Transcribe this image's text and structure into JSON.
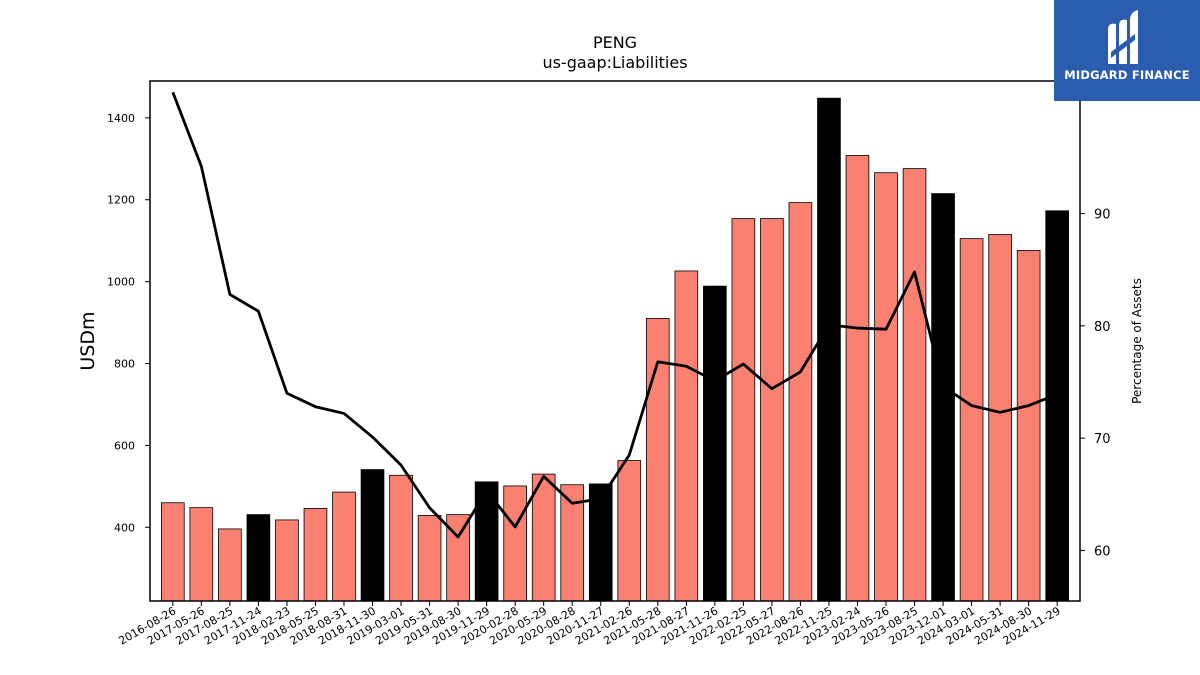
{
  "chart_data": {
    "type": "bar",
    "title": "PENG",
    "subtitle": "us-gaap:Liabilities",
    "ylabel": "USDm",
    "y2label": "Percentage of Assets",
    "ylim": [
      220,
      1490
    ],
    "y2lim": [
      55.5,
      101.8
    ],
    "yticks": [
      400,
      600,
      800,
      1000,
      1200,
      1400
    ],
    "y2ticks": [
      60,
      70,
      80,
      90
    ],
    "categories": [
      "2016-08-26",
      "2017-05-26",
      "2017-08-25",
      "2017-11-24",
      "2018-02-23",
      "2018-05-25",
      "2018-08-31",
      "2018-11-30",
      "2019-03-01",
      "2019-05-31",
      "2019-08-30",
      "2019-11-29",
      "2020-02-28",
      "2020-05-29",
      "2020-08-28",
      "2020-11-27",
      "2021-02-26",
      "2021-05-28",
      "2021-08-27",
      "2021-11-26",
      "2022-02-25",
      "2022-05-27",
      "2022-08-26",
      "2022-11-25",
      "2023-02-24",
      "2023-05-26",
      "2023-08-25",
      "2023-12-01",
      "2024-03-01",
      "2024-05-31",
      "2024-08-30",
      "2024-11-29"
    ],
    "series": [
      {
        "kind": "bar",
        "values": [
          460,
          448,
          396,
          431,
          418,
          446,
          486,
          541,
          527,
          429,
          431,
          511,
          501,
          530,
          504,
          506,
          563,
          910,
          1026,
          989,
          1154,
          1154,
          1193,
          1448,
          1308,
          1266,
          1276,
          1215,
          1105,
          1115,
          1076,
          1173
        ],
        "highlight": [
          false,
          false,
          false,
          true,
          false,
          false,
          false,
          true,
          false,
          false,
          false,
          true,
          false,
          false,
          false,
          true,
          false,
          false,
          false,
          true,
          false,
          false,
          false,
          true,
          false,
          false,
          false,
          true,
          false,
          false,
          false,
          true
        ],
        "color": "#fa8072",
        "highlight_color": "#000000"
      },
      {
        "kind": "line",
        "axis": "right",
        "values": [
          100.8,
          94.2,
          82.8,
          81.3,
          74.0,
          72.8,
          72.2,
          70.1,
          67.6,
          63.8,
          61.2,
          65.3,
          62.1,
          66.6,
          64.2,
          64.6,
          68.5,
          76.8,
          76.4,
          75.1,
          76.6,
          74.4,
          75.9,
          80.1,
          79.8,
          79.7,
          84.8,
          74.6,
          72.9,
          72.3,
          72.9,
          73.9
        ],
        "color": "#000000"
      }
    ]
  },
  "logo": {
    "text": "MIDGARD FINANCE",
    "background": "#2a5db0"
  }
}
